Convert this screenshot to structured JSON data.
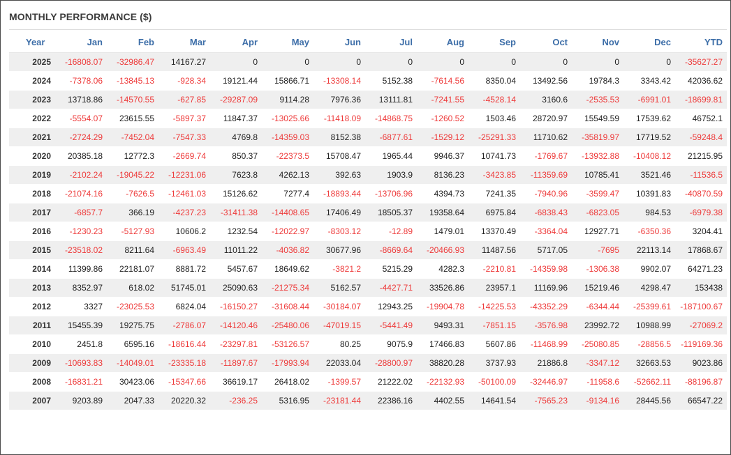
{
  "title": "MONTHLY PERFORMANCE ($)",
  "colors": {
    "header_text": "#3d6ea8",
    "negative": "#ee3a3a",
    "row_alt": "#efefef"
  },
  "chart_data": {
    "type": "table",
    "title": "MONTHLY PERFORMANCE ($)",
    "columns": [
      "Year",
      "Jan",
      "Feb",
      "Mar",
      "Apr",
      "May",
      "Jun",
      "Jul",
      "Aug",
      "Sep",
      "Oct",
      "Nov",
      "Dec",
      "YTD"
    ],
    "rows": [
      [
        "2025",
        "-16808.07",
        "-32986.47",
        "14167.27",
        "0",
        "0",
        "0",
        "0",
        "0",
        "0",
        "0",
        "0",
        "0",
        "-35627.27"
      ],
      [
        "2024",
        "-7378.06",
        "-13845.13",
        "-928.34",
        "19121.44",
        "15866.71",
        "-13308.14",
        "5152.38",
        "-7614.56",
        "8350.04",
        "13492.56",
        "19784.3",
        "3343.42",
        "42036.62"
      ],
      [
        "2023",
        "13718.86",
        "-14570.55",
        "-627.85",
        "-29287.09",
        "9114.28",
        "7976.36",
        "13111.81",
        "-7241.55",
        "-4528.14",
        "3160.6",
        "-2535.53",
        "-6991.01",
        "-18699.81"
      ],
      [
        "2022",
        "-5554.07",
        "23615.55",
        "-5897.37",
        "11847.37",
        "-13025.66",
        "-11418.09",
        "-14868.75",
        "-1260.52",
        "1503.46",
        "28720.97",
        "15549.59",
        "17539.62",
        "46752.1"
      ],
      [
        "2021",
        "-2724.29",
        "-7452.04",
        "-7547.33",
        "4769.8",
        "-14359.03",
        "8152.38",
        "-6877.61",
        "-1529.12",
        "-25291.33",
        "11710.62",
        "-35819.97",
        "17719.52",
        "-59248.4"
      ],
      [
        "2020",
        "20385.18",
        "12772.3",
        "-2669.74",
        "850.37",
        "-22373.5",
        "15708.47",
        "1965.44",
        "9946.37",
        "10741.73",
        "-1769.67",
        "-13932.88",
        "-10408.12",
        "21215.95"
      ],
      [
        "2019",
        "-2102.24",
        "-19045.22",
        "-12231.06",
        "7623.8",
        "4262.13",
        "392.63",
        "1903.9",
        "8136.23",
        "-3423.85",
        "-11359.69",
        "10785.41",
        "3521.46",
        "-11536.5"
      ],
      [
        "2018",
        "-21074.16",
        "-7626.5",
        "-12461.03",
        "15126.62",
        "7277.4",
        "-18893.44",
        "-13706.96",
        "4394.73",
        "7241.35",
        "-7940.96",
        "-3599.47",
        "10391.83",
        "-40870.59"
      ],
      [
        "2017",
        "-6857.7",
        "366.19",
        "-4237.23",
        "-31411.38",
        "-14408.65",
        "17406.49",
        "18505.37",
        "19358.64",
        "6975.84",
        "-6838.43",
        "-6823.05",
        "984.53",
        "-6979.38"
      ],
      [
        "2016",
        "-1230.23",
        "-5127.93",
        "10606.2",
        "1232.54",
        "-12022.97",
        "-8303.12",
        "-12.89",
        "1479.01",
        "13370.49",
        "-3364.04",
        "12927.71",
        "-6350.36",
        "3204.41"
      ],
      [
        "2015",
        "-23518.02",
        "8211.64",
        "-6963.49",
        "11011.22",
        "-4036.82",
        "30677.96",
        "-8669.64",
        "-20466.93",
        "11487.56",
        "5717.05",
        "-7695",
        "22113.14",
        "17868.67"
      ],
      [
        "2014",
        "11399.86",
        "22181.07",
        "8881.72",
        "5457.67",
        "18649.62",
        "-3821.2",
        "5215.29",
        "4282.3",
        "-2210.81",
        "-14359.98",
        "-1306.38",
        "9902.07",
        "64271.23"
      ],
      [
        "2013",
        "8352.97",
        "618.02",
        "51745.01",
        "25090.63",
        "-21275.34",
        "5162.57",
        "-4427.71",
        "33526.86",
        "23957.1",
        "11169.96",
        "15219.46",
        "4298.47",
        "153438"
      ],
      [
        "2012",
        "3327",
        "-23025.53",
        "6824.04",
        "-16150.27",
        "-31608.44",
        "-30184.07",
        "12943.25",
        "-19904.78",
        "-14225.53",
        "-43352.29",
        "-6344.44",
        "-25399.61",
        "-187100.67"
      ],
      [
        "2011",
        "15455.39",
        "19275.75",
        "-2786.07",
        "-14120.46",
        "-25480.06",
        "-47019.15",
        "-5441.49",
        "9493.31",
        "-7851.15",
        "-3576.98",
        "23992.72",
        "10988.99",
        "-27069.2"
      ],
      [
        "2010",
        "2451.8",
        "6595.16",
        "-18616.44",
        "-23297.81",
        "-53126.57",
        "80.25",
        "9075.9",
        "17466.83",
        "5607.86",
        "-11468.99",
        "-25080.85",
        "-28856.5",
        "-119169.36"
      ],
      [
        "2009",
        "-10693.83",
        "-14049.01",
        "-23335.18",
        "-11897.67",
        "-17993.94",
        "22033.04",
        "-28800.97",
        "38820.28",
        "3737.93",
        "21886.8",
        "-3347.12",
        "32663.53",
        "9023.86"
      ],
      [
        "2008",
        "-16831.21",
        "30423.06",
        "-15347.66",
        "36619.17",
        "26418.02",
        "-1399.57",
        "21222.02",
        "-22132.93",
        "-50100.09",
        "-32446.97",
        "-11958.6",
        "-52662.11",
        "-88196.87"
      ],
      [
        "2007",
        "9203.89",
        "2047.33",
        "20220.32",
        "-236.25",
        "5316.95",
        "-23181.44",
        "22386.16",
        "4402.55",
        "14641.54",
        "-7565.23",
        "-9134.16",
        "28445.56",
        "66547.22"
      ]
    ]
  }
}
